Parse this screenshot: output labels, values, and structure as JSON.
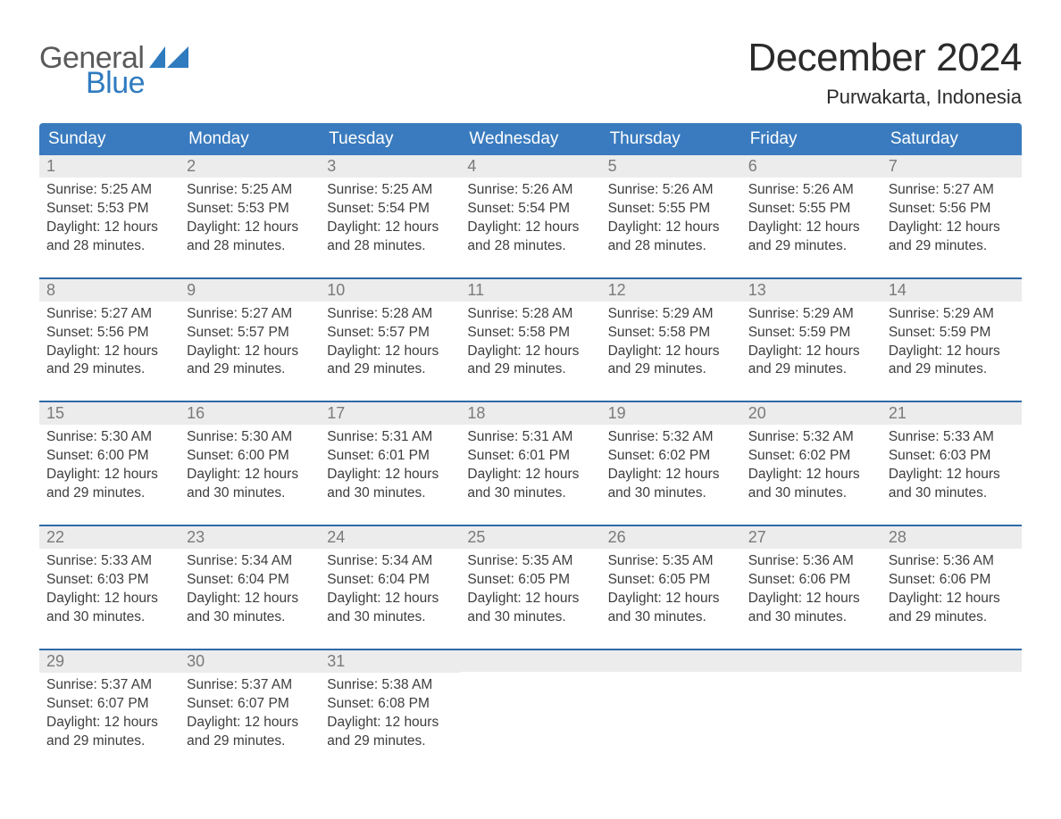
{
  "logo": {
    "text_general": "General",
    "text_blue": "Blue",
    "gray_color": "#5a5a5a",
    "blue_color": "#2f7bbf"
  },
  "title": "December 2024",
  "location": "Purwakarta, Indonesia",
  "theme": {
    "header_bg": "#3a7bbf",
    "week_border": "#2e6aa8",
    "daynum_bg": "#ececec",
    "daynum_color": "#7a7a7a",
    "text_color": "#3d3d3d",
    "page_bg": "#ffffff"
  },
  "columns": [
    "Sunday",
    "Monday",
    "Tuesday",
    "Wednesday",
    "Thursday",
    "Friday",
    "Saturday"
  ],
  "weeks": [
    [
      {
        "day": "1",
        "sunrise": "Sunrise: 5:25 AM",
        "sunset": "Sunset: 5:53 PM",
        "daylight": "Daylight: 12 hours and 28 minutes."
      },
      {
        "day": "2",
        "sunrise": "Sunrise: 5:25 AM",
        "sunset": "Sunset: 5:53 PM",
        "daylight": "Daylight: 12 hours and 28 minutes."
      },
      {
        "day": "3",
        "sunrise": "Sunrise: 5:25 AM",
        "sunset": "Sunset: 5:54 PM",
        "daylight": "Daylight: 12 hours and 28 minutes."
      },
      {
        "day": "4",
        "sunrise": "Sunrise: 5:26 AM",
        "sunset": "Sunset: 5:54 PM",
        "daylight": "Daylight: 12 hours and 28 minutes."
      },
      {
        "day": "5",
        "sunrise": "Sunrise: 5:26 AM",
        "sunset": "Sunset: 5:55 PM",
        "daylight": "Daylight: 12 hours and 28 minutes."
      },
      {
        "day": "6",
        "sunrise": "Sunrise: 5:26 AM",
        "sunset": "Sunset: 5:55 PM",
        "daylight": "Daylight: 12 hours and 29 minutes."
      },
      {
        "day": "7",
        "sunrise": "Sunrise: 5:27 AM",
        "sunset": "Sunset: 5:56 PM",
        "daylight": "Daylight: 12 hours and 29 minutes."
      }
    ],
    [
      {
        "day": "8",
        "sunrise": "Sunrise: 5:27 AM",
        "sunset": "Sunset: 5:56 PM",
        "daylight": "Daylight: 12 hours and 29 minutes."
      },
      {
        "day": "9",
        "sunrise": "Sunrise: 5:27 AM",
        "sunset": "Sunset: 5:57 PM",
        "daylight": "Daylight: 12 hours and 29 minutes."
      },
      {
        "day": "10",
        "sunrise": "Sunrise: 5:28 AM",
        "sunset": "Sunset: 5:57 PM",
        "daylight": "Daylight: 12 hours and 29 minutes."
      },
      {
        "day": "11",
        "sunrise": "Sunrise: 5:28 AM",
        "sunset": "Sunset: 5:58 PM",
        "daylight": "Daylight: 12 hours and 29 minutes."
      },
      {
        "day": "12",
        "sunrise": "Sunrise: 5:29 AM",
        "sunset": "Sunset: 5:58 PM",
        "daylight": "Daylight: 12 hours and 29 minutes."
      },
      {
        "day": "13",
        "sunrise": "Sunrise: 5:29 AM",
        "sunset": "Sunset: 5:59 PM",
        "daylight": "Daylight: 12 hours and 29 minutes."
      },
      {
        "day": "14",
        "sunrise": "Sunrise: 5:29 AM",
        "sunset": "Sunset: 5:59 PM",
        "daylight": "Daylight: 12 hours and 29 minutes."
      }
    ],
    [
      {
        "day": "15",
        "sunrise": "Sunrise: 5:30 AM",
        "sunset": "Sunset: 6:00 PM",
        "daylight": "Daylight: 12 hours and 29 minutes."
      },
      {
        "day": "16",
        "sunrise": "Sunrise: 5:30 AM",
        "sunset": "Sunset: 6:00 PM",
        "daylight": "Daylight: 12 hours and 30 minutes."
      },
      {
        "day": "17",
        "sunrise": "Sunrise: 5:31 AM",
        "sunset": "Sunset: 6:01 PM",
        "daylight": "Daylight: 12 hours and 30 minutes."
      },
      {
        "day": "18",
        "sunrise": "Sunrise: 5:31 AM",
        "sunset": "Sunset: 6:01 PM",
        "daylight": "Daylight: 12 hours and 30 minutes."
      },
      {
        "day": "19",
        "sunrise": "Sunrise: 5:32 AM",
        "sunset": "Sunset: 6:02 PM",
        "daylight": "Daylight: 12 hours and 30 minutes."
      },
      {
        "day": "20",
        "sunrise": "Sunrise: 5:32 AM",
        "sunset": "Sunset: 6:02 PM",
        "daylight": "Daylight: 12 hours and 30 minutes."
      },
      {
        "day": "21",
        "sunrise": "Sunrise: 5:33 AM",
        "sunset": "Sunset: 6:03 PM",
        "daylight": "Daylight: 12 hours and 30 minutes."
      }
    ],
    [
      {
        "day": "22",
        "sunrise": "Sunrise: 5:33 AM",
        "sunset": "Sunset: 6:03 PM",
        "daylight": "Daylight: 12 hours and 30 minutes."
      },
      {
        "day": "23",
        "sunrise": "Sunrise: 5:34 AM",
        "sunset": "Sunset: 6:04 PM",
        "daylight": "Daylight: 12 hours and 30 minutes."
      },
      {
        "day": "24",
        "sunrise": "Sunrise: 5:34 AM",
        "sunset": "Sunset: 6:04 PM",
        "daylight": "Daylight: 12 hours and 30 minutes."
      },
      {
        "day": "25",
        "sunrise": "Sunrise: 5:35 AM",
        "sunset": "Sunset: 6:05 PM",
        "daylight": "Daylight: 12 hours and 30 minutes."
      },
      {
        "day": "26",
        "sunrise": "Sunrise: 5:35 AM",
        "sunset": "Sunset: 6:05 PM",
        "daylight": "Daylight: 12 hours and 30 minutes."
      },
      {
        "day": "27",
        "sunrise": "Sunrise: 5:36 AM",
        "sunset": "Sunset: 6:06 PM",
        "daylight": "Daylight: 12 hours and 30 minutes."
      },
      {
        "day": "28",
        "sunrise": "Sunrise: 5:36 AM",
        "sunset": "Sunset: 6:06 PM",
        "daylight": "Daylight: 12 hours and 29 minutes."
      }
    ],
    [
      {
        "day": "29",
        "sunrise": "Sunrise: 5:37 AM",
        "sunset": "Sunset: 6:07 PM",
        "daylight": "Daylight: 12 hours and 29 minutes."
      },
      {
        "day": "30",
        "sunrise": "Sunrise: 5:37 AM",
        "sunset": "Sunset: 6:07 PM",
        "daylight": "Daylight: 12 hours and 29 minutes."
      },
      {
        "day": "31",
        "sunrise": "Sunrise: 5:38 AM",
        "sunset": "Sunset: 6:08 PM",
        "daylight": "Daylight: 12 hours and 29 minutes."
      },
      null,
      null,
      null,
      null
    ]
  ]
}
